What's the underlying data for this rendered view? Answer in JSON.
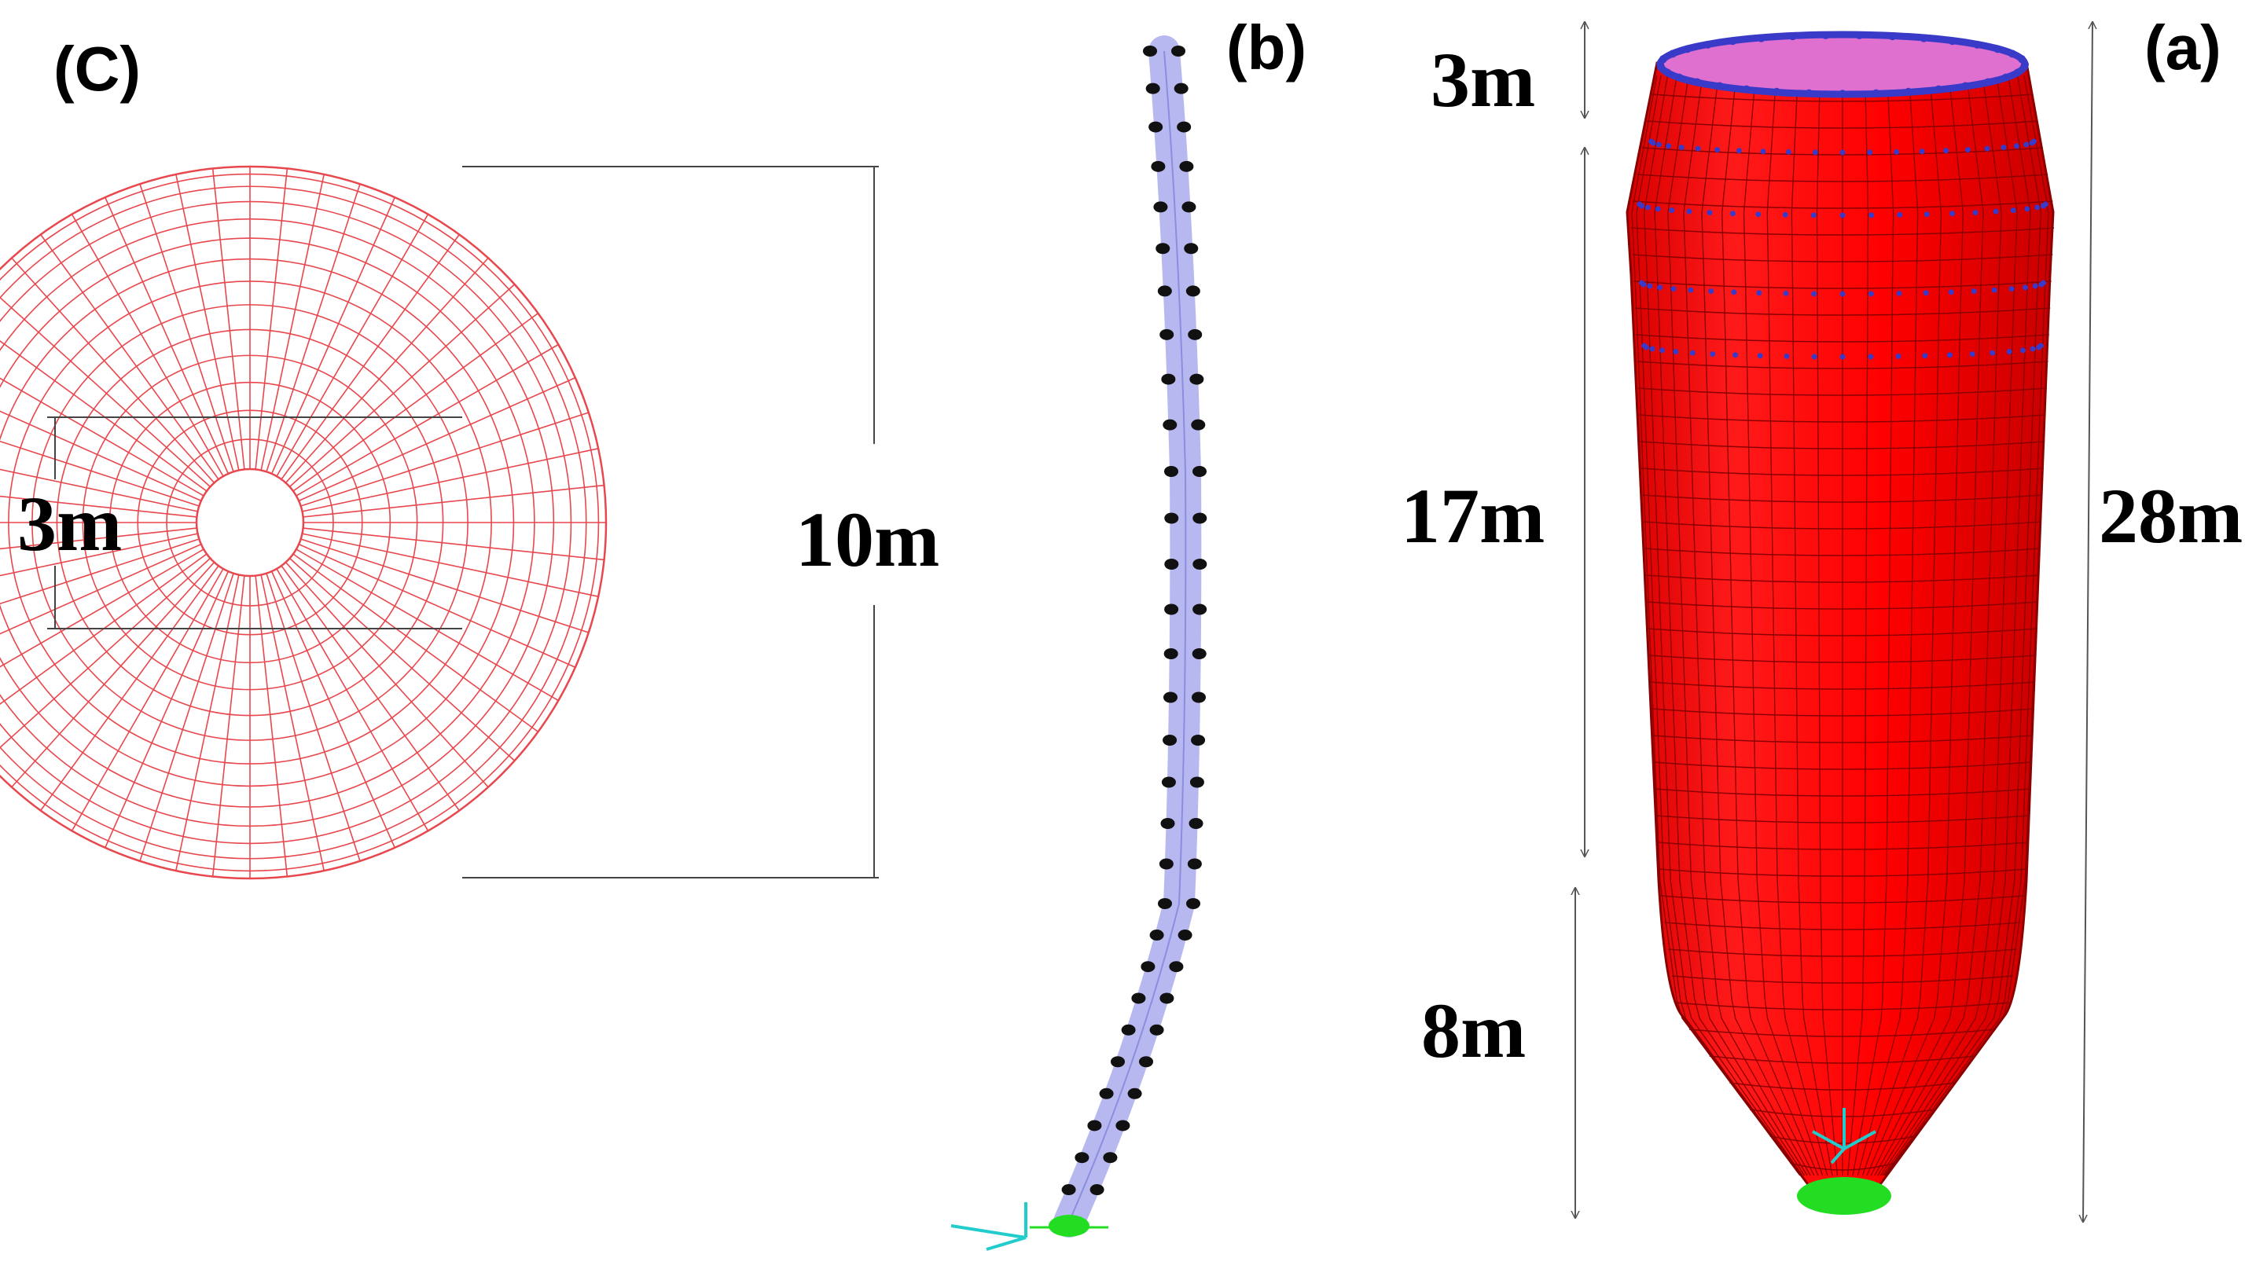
{
  "panels": {
    "c": {
      "label": "(C)",
      "inner_diameter_label": "3m",
      "outer_diameter_label": "10m",
      "mesh_color": "#e8474d",
      "radial_divisions": 60
    },
    "b": {
      "label": "(b)",
      "beam_color": "#b8b8f0",
      "node_color": "#111111",
      "node_count": 30,
      "support_color": "#22dd22",
      "axis_color": "#22cccc"
    },
    "a": {
      "label": "(a)",
      "segment_labels": {
        "top": "3m",
        "middle": "17m",
        "bottom": "8m"
      },
      "total_height_label": "28m",
      "shell_color": "#ff0000",
      "shell_line_color": "#8a0000",
      "interior_color": "#e070d0",
      "rim_color": "#3a3ac8",
      "support_color": "#22dd22",
      "axis_color": "#22cccc"
    }
  }
}
